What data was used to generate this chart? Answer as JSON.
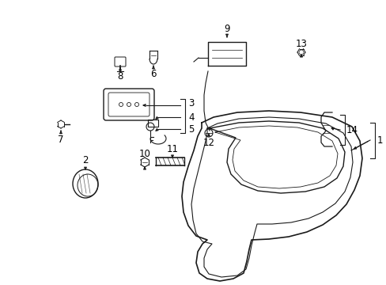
{
  "bg_color": "#ffffff",
  "line_color": "#1a1a1a",
  "label_color": "#000000",
  "label_fs": 8,
  "lw": 1.0
}
